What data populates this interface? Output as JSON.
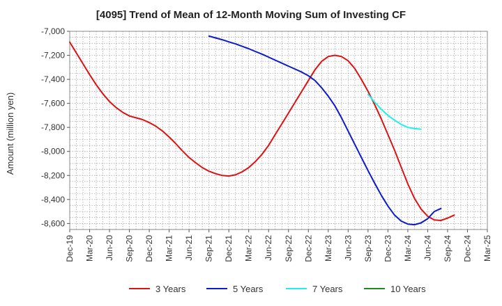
{
  "chart_data": {
    "type": "line",
    "title": "[4095]  Trend of Mean of 12-Month Moving Sum of Investing CF",
    "xlabel": "",
    "ylabel": "Amount (million yen)",
    "ylim": [
      -8650,
      -7000
    ],
    "yticks": [
      -7000,
      -7200,
      -7400,
      -7600,
      -7800,
      -8000,
      -8200,
      -8400,
      -8600
    ],
    "ytick_labels": [
      "-7,000",
      "-7,200",
      "-7,400",
      "-7,600",
      "-7,800",
      "-8,000",
      "-8,200",
      "-8,400",
      "-8,600"
    ],
    "x_start": "Dec-19",
    "x_end": "Mar-25",
    "x_tick_labels": [
      "Dec-19",
      "Mar-20",
      "Jun-20",
      "Sep-20",
      "Dec-20",
      "Mar-21",
      "Jun-21",
      "Sep-21",
      "Dec-21",
      "Mar-22",
      "Jun-22",
      "Sep-22",
      "Dec-22",
      "Mar-23",
      "Jun-23",
      "Sep-23",
      "Dec-23",
      "Mar-24",
      "Jun-24",
      "Sep-24",
      "Dec-24",
      "Mar-25"
    ],
    "grid": true,
    "legend_position": "bottom",
    "series": [
      {
        "name": "3 Years",
        "color": "#dd1111",
        "start_month_index": 0,
        "values": [
          -7090,
          -7180,
          -7270,
          -7360,
          -7445,
          -7520,
          -7585,
          -7635,
          -7675,
          -7705,
          -7720,
          -7735,
          -7760,
          -7790,
          -7830,
          -7880,
          -7935,
          -7995,
          -8050,
          -8095,
          -8135,
          -8165,
          -8185,
          -8200,
          -8205,
          -8195,
          -8170,
          -8135,
          -8085,
          -8025,
          -7950,
          -7860,
          -7770,
          -7680,
          -7590,
          -7500,
          -7410,
          -7320,
          -7250,
          -7210,
          -7200,
          -7210,
          -7245,
          -7310,
          -7400,
          -7500,
          -7610,
          -7730,
          -7860,
          -7990,
          -8130,
          -8270,
          -8390,
          -8480,
          -8540,
          -8570,
          -8575,
          -8555,
          -8530
        ]
      },
      {
        "name": "5 Years",
        "color": "#0a1acc",
        "start_month_index": 21,
        "values": [
          -7040,
          -7055,
          -7070,
          -7088,
          -7105,
          -7125,
          -7145,
          -7168,
          -7190,
          -7215,
          -7240,
          -7265,
          -7290,
          -7315,
          -7340,
          -7370,
          -7410,
          -7470,
          -7540,
          -7620,
          -7720,
          -7830,
          -7940,
          -8050,
          -8160,
          -8265,
          -8365,
          -8455,
          -8530,
          -8580,
          -8605,
          -8610,
          -8595,
          -8560,
          -8500,
          -8475
        ]
      },
      {
        "name": "7 Years",
        "color": "#22eeee",
        "start_month_index": 45,
        "values": [
          -7525,
          -7590,
          -7650,
          -7700,
          -7740,
          -7775,
          -7800,
          -7810,
          -7815
        ]
      },
      {
        "name": "10 Years",
        "color": "#1a8a1a",
        "start_month_index": 0,
        "values": []
      }
    ]
  }
}
